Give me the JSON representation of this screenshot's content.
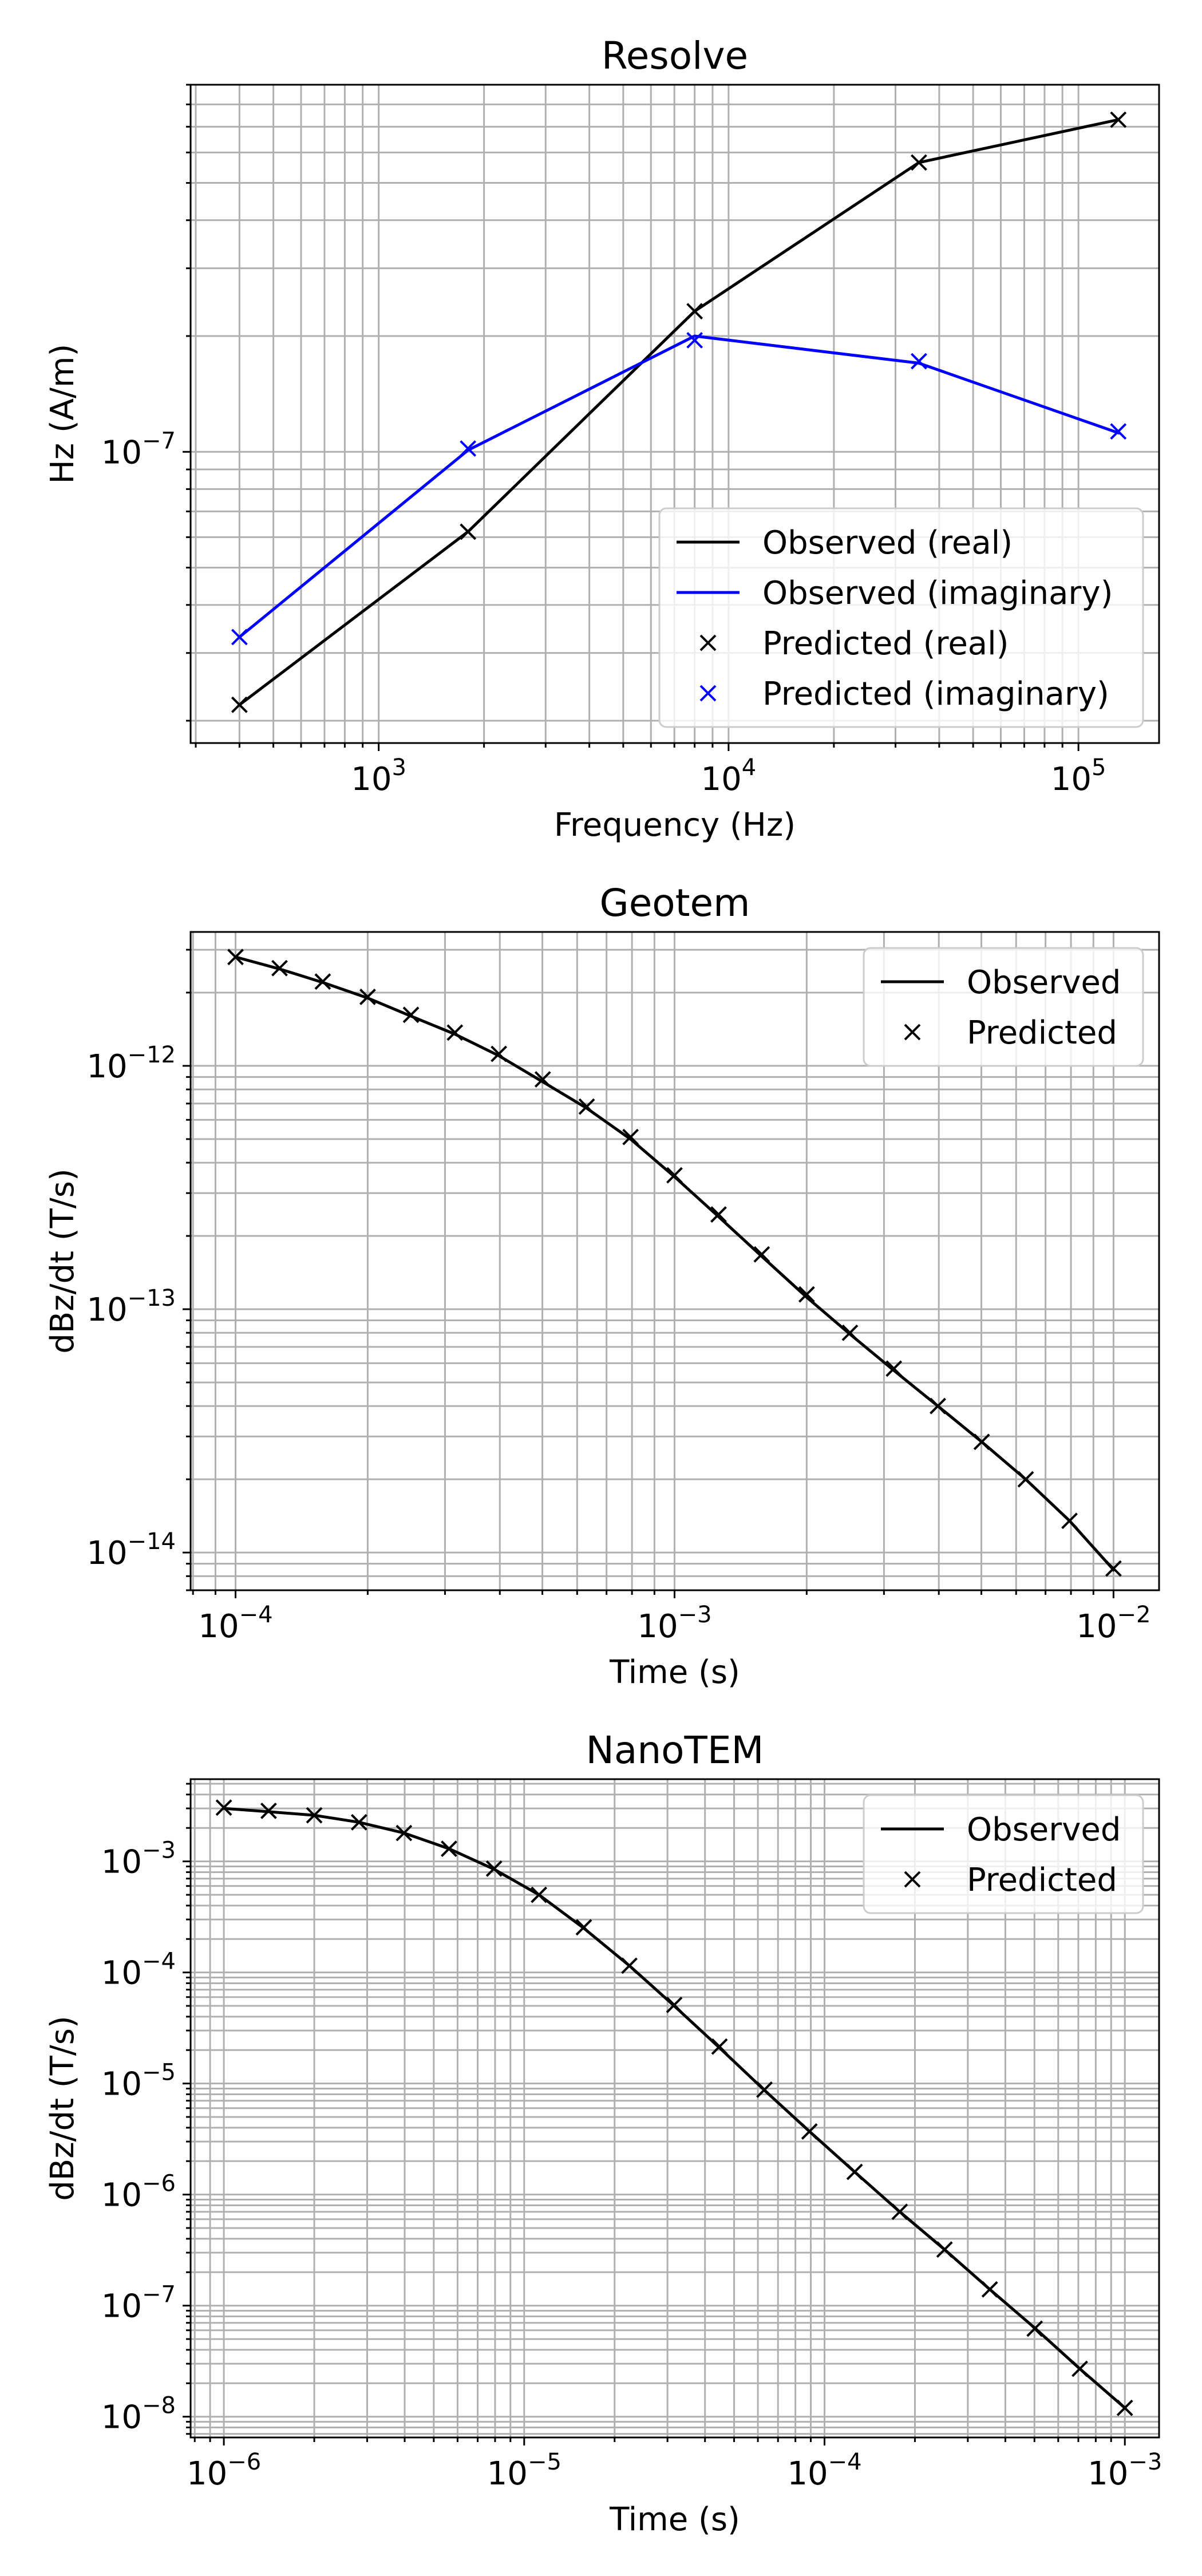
{
  "chart_data": [
    {
      "type": "line",
      "title": "Resolve",
      "xlabel": "Frequency (Hz)",
      "ylabel": "Hz (A/m)",
      "xscale": "log",
      "yscale": "log",
      "xlim": [
        290,
        170000
      ],
      "ylim": [
        1.75e-08,
        9e-07
      ],
      "xticks": [
        {
          "value": 1000,
          "base": "10",
          "exp": "3"
        },
        {
          "value": 10000,
          "base": "10",
          "exp": "4"
        },
        {
          "value": 100000,
          "base": "10",
          "exp": "5"
        }
      ],
      "yticks": [
        {
          "value": 1e-07,
          "base": "10",
          "exp": "−7"
        }
      ],
      "grid": "major and minor",
      "legend_position": "lower-right",
      "series": [
        {
          "name": "Observed (real)",
          "style": "line",
          "color": "#000000",
          "x": [
            400,
            1800,
            8000,
            35000,
            130000
          ],
          "y": [
            2.2e-08,
            6.2e-08,
            2.32e-07,
            5.65e-07,
            7.3e-07
          ]
        },
        {
          "name": "Observed (imaginary)",
          "style": "line",
          "color": "#0000ff",
          "x": [
            400,
            1800,
            8000,
            35000,
            130000
          ],
          "y": [
            3.3e-08,
            1.01e-07,
            2e-07,
            1.7e-07,
            1.12e-07
          ]
        },
        {
          "name": "Predicted (real)",
          "style": "marker",
          "color": "#000000",
          "x": [
            400,
            1800,
            8000,
            35000,
            130000
          ],
          "y": [
            2.2e-08,
            6.2e-08,
            2.32e-07,
            5.65e-07,
            7.3e-07
          ]
        },
        {
          "name": "Predicted (imaginary)",
          "style": "marker",
          "color": "#0000ff",
          "x": [
            400,
            1800,
            8000,
            35000,
            130000
          ],
          "y": [
            3.3e-08,
            1.02e-07,
            1.95e-07,
            1.72e-07,
            1.13e-07
          ]
        }
      ]
    },
    {
      "type": "line",
      "title": "Geotem",
      "xlabel": "Time (s)",
      "ylabel": "dBz/dt (T/s)",
      "xscale": "log",
      "yscale": "log",
      "xlim": [
        7.9e-05,
        0.0127
      ],
      "ylim": [
        7e-15,
        3.55e-12
      ],
      "xticks": [
        {
          "value": 0.0001,
          "base": "10",
          "exp": "−4"
        },
        {
          "value": 0.001,
          "base": "10",
          "exp": "−3"
        },
        {
          "value": 0.01,
          "base": "10",
          "exp": "−2"
        }
      ],
      "yticks": [
        {
          "value": 1e-12,
          "base": "10",
          "exp": "−12"
        },
        {
          "value": 1e-13,
          "base": "10",
          "exp": "−13"
        },
        {
          "value": 1e-14,
          "base": "10",
          "exp": "−14"
        }
      ],
      "grid": "major and minor",
      "legend_position": "top-right",
      "series": [
        {
          "name": "Observed",
          "style": "line",
          "color": "#000000",
          "x": [
            0.0001,
            0.000126,
            0.000158,
            0.0002,
            0.000251,
            0.000316,
            0.000398,
            0.000501,
            0.000631,
            0.000794,
            0.001,
            0.00126,
            0.00158,
            0.002,
            0.00251,
            0.00316,
            0.00398,
            0.00501,
            0.00631,
            0.00794,
            0.01
          ],
          "y": [
            2.8e-12,
            2.5e-12,
            2.2e-12,
            1.9e-12,
            1.6e-12,
            1.35e-12,
            1.1e-12,
            8.6e-13,
            6.7e-13,
            5e-13,
            3.5e-13,
            2.4e-13,
            1.65e-13,
            1.12e-13,
            7.9e-14,
            5.6e-14,
            4e-14,
            2.85e-14,
            2e-14,
            1.35e-14,
            8.5e-15
          ]
        },
        {
          "name": "Predicted",
          "style": "marker",
          "color": "#000000",
          "x": [
            0.0001,
            0.000126,
            0.000158,
            0.0002,
            0.000251,
            0.000316,
            0.000398,
            0.000501,
            0.000631,
            0.000794,
            0.001,
            0.00126,
            0.00158,
            0.002,
            0.00251,
            0.00316,
            0.00398,
            0.00501,
            0.00631,
            0.00794,
            0.01
          ],
          "y": [
            2.8e-12,
            2.52e-12,
            2.22e-12,
            1.92e-12,
            1.62e-12,
            1.37e-12,
            1.12e-12,
            8.8e-13,
            6.8e-13,
            5.1e-13,
            3.55e-13,
            2.45e-13,
            1.68e-13,
            1.15e-13,
            8e-14,
            5.7e-14,
            4e-14,
            2.85e-14,
            2e-14,
            1.35e-14,
            8.6e-15
          ]
        }
      ]
    },
    {
      "type": "line",
      "title": "NanoTEM",
      "xlabel": "Time (s)",
      "ylabel": "dBz/dt (T/s)",
      "xscale": "log",
      "yscale": "log",
      "xlim": [
        7.75e-07,
        0.0013
      ],
      "ylim": [
        6.5e-09,
        0.0055
      ],
      "xticks": [
        {
          "value": 1e-06,
          "base": "10",
          "exp": "−6"
        },
        {
          "value": 1e-05,
          "base": "10",
          "exp": "−5"
        },
        {
          "value": 0.0001,
          "base": "10",
          "exp": "−4"
        },
        {
          "value": 0.001,
          "base": "10",
          "exp": "−3"
        }
      ],
      "yticks": [
        {
          "value": 0.001,
          "base": "10",
          "exp": "−3"
        },
        {
          "value": 0.0001,
          "base": "10",
          "exp": "−4"
        },
        {
          "value": 1e-05,
          "base": "10",
          "exp": "−5"
        },
        {
          "value": 1e-06,
          "base": "10",
          "exp": "−6"
        },
        {
          "value": 1e-07,
          "base": "10",
          "exp": "−7"
        },
        {
          "value": 1e-08,
          "base": "10",
          "exp": "−8"
        }
      ],
      "grid": "major and minor",
      "legend_position": "top-right",
      "series": [
        {
          "name": "Observed",
          "style": "line",
          "color": "#000000",
          "x": [
            1e-06,
            1.41e-06,
            2e-06,
            2.82e-06,
            3.98e-06,
            5.62e-06,
            7.94e-06,
            1.12e-05,
            1.58e-05,
            2.24e-05,
            3.16e-05,
            4.47e-05,
            6.31e-05,
            8.91e-05,
            0.000126,
            0.000178,
            0.000251,
            0.000355,
            0.000501,
            0.000708,
            0.001
          ],
          "y": [
            0.003,
            0.0028,
            0.0026,
            0.00225,
            0.0018,
            0.0013,
            0.00085,
            0.0005,
            0.00025,
            0.000115,
            5e-05,
            2.1e-05,
            8.7e-06,
            3.7e-06,
            1.6e-06,
            7e-07,
            3.2e-07,
            1.4e-07,
            6.3e-08,
            2.7e-08,
            1.2e-08
          ]
        },
        {
          "name": "Predicted",
          "style": "marker",
          "color": "#000000",
          "x": [
            1e-06,
            1.41e-06,
            2e-06,
            2.82e-06,
            3.98e-06,
            5.62e-06,
            7.94e-06,
            1.12e-05,
            1.58e-05,
            2.24e-05,
            3.16e-05,
            4.47e-05,
            6.31e-05,
            8.91e-05,
            0.000126,
            0.000178,
            0.000251,
            0.000355,
            0.000501,
            0.000708,
            0.001
          ],
          "y": [
            0.00305,
            0.00285,
            0.0026,
            0.00225,
            0.0018,
            0.0013,
            0.00086,
            0.0005,
            0.000255,
            0.000115,
            5.1e-05,
            2.15e-05,
            8.8e-06,
            3.7e-06,
            1.6e-06,
            7e-07,
            3.2e-07,
            1.4e-07,
            6.2e-08,
            2.7e-08,
            1.2e-08
          ]
        }
      ]
    }
  ]
}
